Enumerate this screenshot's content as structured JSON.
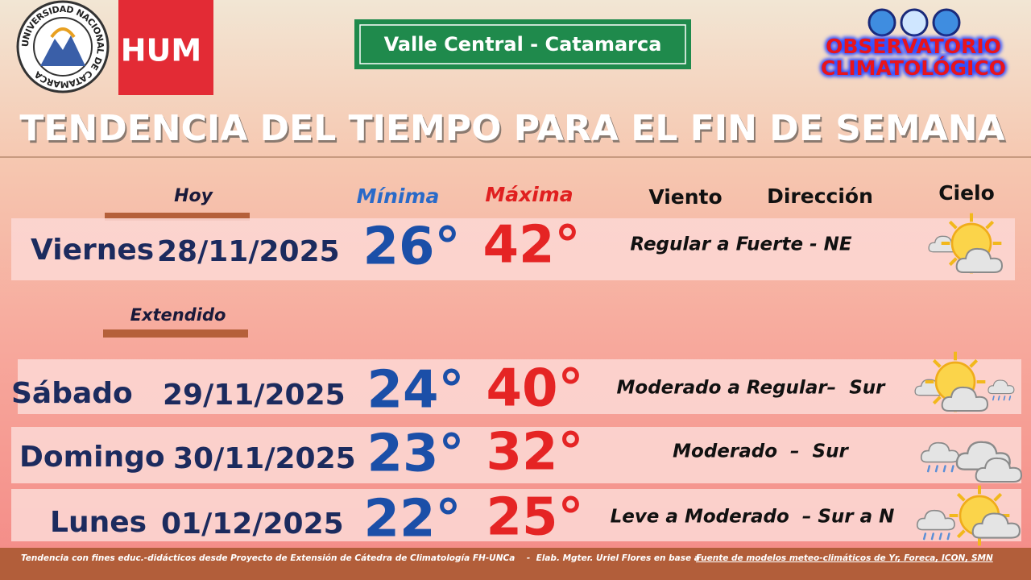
{
  "header": {
    "university": "UNIVERSIDAD NACIONAL DE CATAMARCA",
    "faculty": "HUM",
    "region": "Valle Central - Catamarca",
    "observatory": [
      "OBSERVATORIO",
      "CLIMATOLÓGICO"
    ],
    "title": "TENDENCIA DEL TIEMPO PARA EL FIN DE SEMANA"
  },
  "columns": {
    "today": "Hoy",
    "min": "Mínima",
    "max": "Máxima",
    "wind": "Viento",
    "direction": "Dirección",
    "sky": "Cielo",
    "extended": "Extendido"
  },
  "rows": [
    {
      "day": "Viernes",
      "date": "28/11/2025",
      "min": "26°",
      "max": "42°",
      "wind": "Regular a Fuerte - NE"
    },
    {
      "day": "Sábado",
      "date": "29/11/2025",
      "min": "24°",
      "max": "40°",
      "wind": "Moderado a Regular–  Sur"
    },
    {
      "day": "Domingo",
      "date": "30/11/2025",
      "min": "23°",
      "max": "32°",
      "wind": "Moderado  –  Sur"
    },
    {
      "day": "Lunes",
      "date": "01/12/2025",
      "min": "22°",
      "max": "25°",
      "wind": "Leve a Moderado  – Sur a N"
    }
  ],
  "footer": {
    "note": "Tendencia con fines educ.-didácticos desde Proyecto de Extensión de Cátedra de Climatología FH-UNCa    -  Elab. Mgter. Uriel Flores en base a",
    "source": "Fuente de modelos meteo-climáticos de Yr, Foreca, ICON, SMN"
  }
}
